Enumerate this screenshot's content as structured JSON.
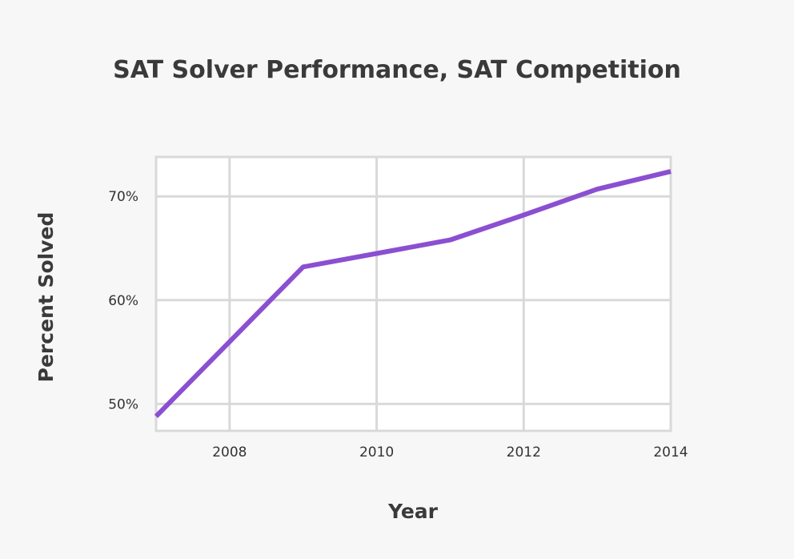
{
  "chart_data": {
    "type": "line",
    "title": "SAT Solver Performance, SAT Competition",
    "xlabel": "Year",
    "ylabel": "Percent Solved",
    "xlim": [
      2007,
      2014
    ],
    "ylim": [
      47.4,
      73.8
    ],
    "x_ticks": [
      2008,
      2010,
      2012,
      2014
    ],
    "x_tick_labels": [
      "2008",
      "2010",
      "2012",
      "2014"
    ],
    "y_ticks": [
      50,
      60,
      70
    ],
    "y_tick_labels": [
      "50%",
      "60%",
      "70%"
    ],
    "grid": true,
    "legend": "none",
    "line_color": "#8b4fd1",
    "series": [
      {
        "x": [
          2007,
          2008,
          2009,
          2010,
          2011,
          2012,
          2013,
          2014
        ],
        "values": [
          48.8,
          56.0,
          63.2,
          64.5,
          65.8,
          68.2,
          70.7,
          72.4
        ]
      }
    ]
  }
}
